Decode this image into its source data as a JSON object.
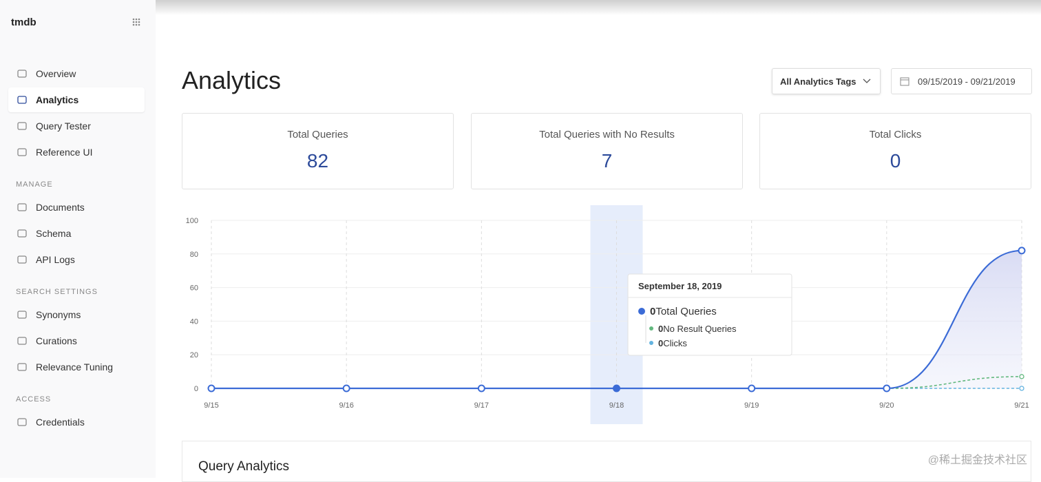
{
  "sidebar": {
    "brand": "tmdb",
    "groups": [
      {
        "items": [
          {
            "label": "Overview"
          },
          {
            "label": "Analytics",
            "active": true
          },
          {
            "label": "Query Tester"
          },
          {
            "label": "Reference UI"
          }
        ]
      },
      {
        "heading": "MANAGE",
        "items": [
          {
            "label": "Documents"
          },
          {
            "label": "Schema"
          },
          {
            "label": "API Logs"
          }
        ]
      },
      {
        "heading": "SEARCH SETTINGS",
        "items": [
          {
            "label": "Synonyms"
          },
          {
            "label": "Curations"
          },
          {
            "label": "Relevance Tuning"
          }
        ]
      },
      {
        "heading": "ACCESS",
        "items": [
          {
            "label": "Credentials"
          }
        ]
      }
    ]
  },
  "header": {
    "title": "Analytics",
    "tags_button": "All Analytics Tags",
    "date_range": "09/15/2019 - 09/21/2019"
  },
  "stats": [
    {
      "label": "Total Queries",
      "value": 82
    },
    {
      "label": "Total Queries with No Results",
      "value": 7
    },
    {
      "label": "Total Clicks",
      "value": 0
    }
  ],
  "chart_data": {
    "type": "line",
    "categories": [
      "9/15",
      "9/16",
      "9/17",
      "9/18",
      "9/19",
      "9/20",
      "9/21"
    ],
    "series": [
      {
        "name": "Total Queries",
        "color": "#3b6bd6",
        "values": [
          0,
          0,
          0,
          0,
          0,
          0,
          82
        ]
      },
      {
        "name": "No Result Queries",
        "color": "#62b87e",
        "values": [
          0,
          0,
          0,
          0,
          0,
          0,
          7
        ]
      },
      {
        "name": "Clicks",
        "color": "#63b3e0",
        "values": [
          0,
          0,
          0,
          0,
          0,
          0,
          0
        ]
      }
    ],
    "ylim": [
      0,
      100
    ],
    "yticks": [
      0,
      20,
      40,
      60,
      80,
      100
    ],
    "grid": true,
    "tooltip": {
      "title": "September 18, 2019",
      "index": 3
    }
  },
  "section": {
    "title": "Query Analytics"
  },
  "watermark": "@稀土掘金技术社区"
}
